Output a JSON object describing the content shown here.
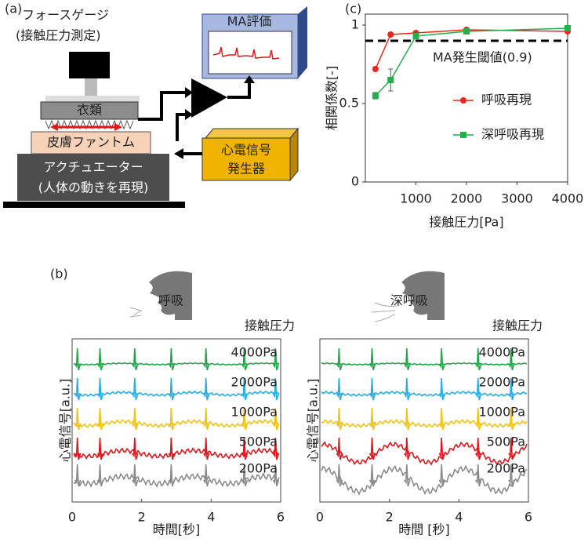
{
  "panels": [
    "(a)",
    "(b)",
    "(c)"
  ],
  "diagram": {
    "force_gauge": [
      "フォースゲージ",
      "(接触圧力測定)"
    ],
    "evaluation": "MA評価",
    "clothing": "衣類",
    "skin_phantom": "皮膚ファントム",
    "actuator": [
      "アクチュエーター",
      "(人体の動きを再現)"
    ],
    "generator": [
      "心電信号",
      "発生器"
    ]
  },
  "chart_data": [
    {
      "type": "scatter-line",
      "ylabel": "相関係数[-]",
      "xlabel": "接触圧力[Pa]",
      "xlim": [
        0,
        4000
      ],
      "xticks": [
        1000,
        2000,
        3000,
        4000
      ],
      "ylim": [
        0,
        1.07
      ],
      "yticks": [
        0,
        0.5,
        1
      ],
      "threshold": 0.9,
      "threshold_label": "MA発生閾値(0.9)",
      "legend": "right",
      "x": [
        200,
        500,
        1000,
        2000,
        4000
      ],
      "series": [
        {
          "name": "呼吸再現",
          "color": "#e8261e",
          "marker": "circle",
          "values": [
            0.72,
            0.94,
            0.95,
            0.97,
            0.96
          ]
        },
        {
          "name": "深呼吸再現",
          "color": "#22b04a",
          "marker": "square",
          "values": [
            0.55,
            0.65,
            0.93,
            0.96,
            0.98
          ],
          "errors": [
            0.02,
            0.07,
            0.01,
            0.01,
            0.01
          ]
        }
      ]
    },
    {
      "type": "ecg",
      "title": "呼吸",
      "legend_title": "接触圧力",
      "ylabel": "心電信号[a.u.]",
      "xlabel": "時間[秒]",
      "xlim": [
        0,
        6
      ],
      "xticks": [
        0,
        2,
        4,
        6
      ],
      "series": [
        {
          "name": "4000Pa",
          "color": "#1fa84a",
          "peaks": [
            0.15,
            0.8,
            1.8,
            2.85,
            3.85,
            4.95,
            5.85
          ]
        },
        {
          "name": "2000Pa",
          "color": "#22aee6",
          "peaks": [
            0.15,
            0.8,
            1.8,
            2.85,
            3.85,
            4.95,
            5.85
          ]
        },
        {
          "name": "1000Pa",
          "color": "#f2c20f",
          "peaks": [
            0.15,
            0.8,
            1.8,
            2.85,
            3.85,
            4.95,
            5.85
          ]
        },
        {
          "name": "500Pa",
          "color": "#e3141b",
          "peaks": [
            0.15,
            0.8,
            1.8,
            2.85,
            3.85,
            4.95,
            5.85
          ]
        },
        {
          "name": "200Pa",
          "color": "#8a8a8a",
          "peaks": [
            0.15,
            0.8,
            1.8,
            2.85,
            3.85,
            4.95,
            5.85
          ]
        }
      ]
    },
    {
      "type": "ecg",
      "title": "深呼吸",
      "legend_title": "接触圧力",
      "ylabel": "心電信号[a.u.]",
      "xlabel": "時間 [秒]",
      "xlim": [
        0,
        6
      ],
      "xticks": [
        0,
        2,
        4,
        6
      ],
      "series": [
        {
          "name": "4000Pa",
          "color": "#1fa84a",
          "peaks": [
            0.55,
            1.5,
            2.5,
            3.5,
            4.55,
            5.5
          ]
        },
        {
          "name": "2000Pa",
          "color": "#22aee6",
          "peaks": [
            0.55,
            1.5,
            2.5,
            3.5,
            4.55,
            5.5
          ]
        },
        {
          "name": "1000Pa",
          "color": "#f2c20f",
          "peaks": [
            0.55,
            1.5,
            2.5,
            3.5,
            4.55,
            5.5
          ]
        },
        {
          "name": "500Pa",
          "color": "#e3141b",
          "peaks": [
            0.55,
            1.5,
            2.5,
            3.5,
            4.55,
            5.5
          ]
        },
        {
          "name": "200Pa",
          "color": "#8a8a8a",
          "peaks": [
            0.55,
            1.5,
            2.5,
            3.5,
            4.55,
            5.5
          ]
        }
      ]
    }
  ]
}
